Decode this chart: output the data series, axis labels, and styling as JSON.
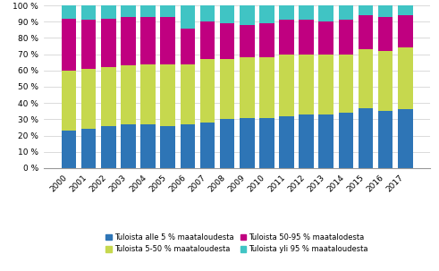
{
  "years": [
    2000,
    2001,
    2002,
    2003,
    2004,
    2005,
    2006,
    2007,
    2008,
    2009,
    2010,
    2011,
    2012,
    2013,
    2014,
    2015,
    2016,
    2017
  ],
  "serie1": [
    23,
    24,
    26,
    27,
    27,
    26,
    27,
    28,
    30,
    31,
    31,
    32,
    33,
    33,
    34,
    37,
    35,
    36
  ],
  "serie2": [
    37,
    37,
    36,
    36,
    37,
    38,
    37,
    39,
    37,
    37,
    37,
    38,
    37,
    37,
    36,
    36,
    37,
    38
  ],
  "serie3": [
    32,
    30,
    30,
    30,
    29,
    29,
    22,
    23,
    22,
    20,
    21,
    21,
    21,
    20,
    21,
    21,
    21,
    20
  ],
  "serie4": [
    8,
    9,
    8,
    7,
    7,
    7,
    14,
    10,
    11,
    12,
    11,
    9,
    9,
    10,
    9,
    6,
    7,
    6
  ],
  "colors": [
    "#2e75b6",
    "#c6d84e",
    "#c00080",
    "#40c4c4"
  ],
  "legend_labels": [
    "Tuloista alle 5 % maataloudesta",
    "Tuloista 5-50 % maataloudesta",
    "Tuloista 50-95 % maatalodesta",
    "Tuloista yli 95 % maataloudesta"
  ],
  "ylim": [
    0,
    100
  ],
  "yticks": [
    0,
    10,
    20,
    30,
    40,
    50,
    60,
    70,
    80,
    90,
    100
  ],
  "ytick_labels": [
    "0 %",
    "10 %",
    "20 %",
    "30 %",
    "40 %",
    "50 %",
    "60 %",
    "70 %",
    "80 %",
    "90 %",
    "100 %"
  ],
  "background_color": "#ffffff",
  "grid_color": "#cccccc",
  "bar_width": 0.75
}
